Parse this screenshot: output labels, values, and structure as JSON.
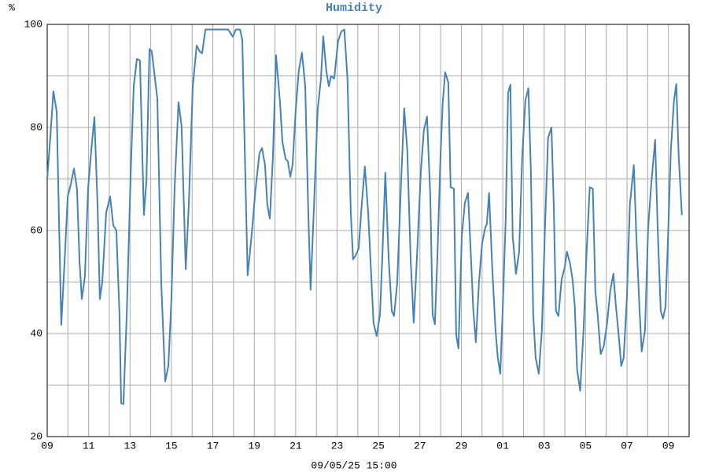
{
  "chart_data": {
    "type": "line",
    "title": "Humidity",
    "ylabel": "%",
    "xlabel": "09/05/25 15:00",
    "color": "#4682b4",
    "grid": true,
    "xlim": [
      0,
      31
    ],
    "xticks": [
      {
        "value": 0,
        "label": "09"
      },
      {
        "value": 2,
        "label": "11"
      },
      {
        "value": 4,
        "label": "13"
      },
      {
        "value": 6,
        "label": "15"
      },
      {
        "value": 8,
        "label": "17"
      },
      {
        "value": 10,
        "label": "19"
      },
      {
        "value": 12,
        "label": "21"
      },
      {
        "value": 14,
        "label": "23"
      },
      {
        "value": 16,
        "label": "25"
      },
      {
        "value": 18,
        "label": "27"
      },
      {
        "value": 20,
        "label": "29"
      },
      {
        "value": 22,
        "label": "01"
      },
      {
        "value": 24,
        "label": "03"
      },
      {
        "value": 26,
        "label": "05"
      },
      {
        "value": 28,
        "label": "07"
      },
      {
        "value": 30,
        "label": "09"
      }
    ],
    "ylim": [
      20,
      100
    ],
    "yticks": [
      20,
      40,
      60,
      80,
      100
    ],
    "x": [
      0,
      0.15,
      0.3,
      0.46,
      0.57,
      0.68,
      0.84,
      0.99,
      1.14,
      1.29,
      1.44,
      1.56,
      1.67,
      1.82,
      1.97,
      2.13,
      2.28,
      2.43,
      2.54,
      2.66,
      2.85,
      3.04,
      3.19,
      3.34,
      3.49,
      3.57,
      3.68,
      3.84,
      4.03,
      4.18,
      4.33,
      4.48,
      4.67,
      4.79,
      4.94,
      5.05,
      5.32,
      5.51,
      5.7,
      5.85,
      6,
      6.15,
      6.34,
      6.49,
      6.69,
      6.84,
      7.03,
      7.22,
      7.37,
      7.48,
      7.64,
      7.82,
      8.74,
      8.96,
      9.11,
      9.31,
      9.42,
      9.54,
      9.68,
      9.87,
      10.06,
      10.25,
      10.37,
      10.52,
      10.63,
      10.75,
      10.9,
      11.05,
      11.24,
      11.36,
      11.51,
      11.62,
      11.74,
      11.85,
      12,
      12.15,
      12.3,
      12.46,
      12.61,
      12.72,
      12.87,
      13.06,
      13.22,
      13.33,
      13.48,
      13.6,
      13.71,
      13.86,
      14.05,
      14.2,
      14.35,
      14.5,
      14.66,
      14.77,
      14.89,
      15.04,
      15.19,
      15.34,
      15.5,
      15.61,
      15.76,
      15.91,
      16.07,
      16.18,
      16.33,
      16.49,
      16.64,
      16.75,
      16.9,
      17.09,
      17.24,
      17.39,
      17.55,
      17.7,
      17.85,
      18.04,
      18.19,
      18.34,
      18.5,
      18.61,
      18.72,
      18.84,
      18.99,
      19.1,
      19.22,
      19.37,
      19.48,
      19.64,
      19.75,
      19.86,
      20.02,
      20.17,
      20.32,
      20.47,
      20.58,
      20.7,
      20.85,
      21,
      21.15,
      21.23,
      21.34,
      21.49,
      21.65,
      21.76,
      21.88,
      21.99,
      22.14,
      22.26,
      22.37,
      22.48,
      22.64,
      22.79,
      22.94,
      23.09,
      23.24,
      23.36,
      23.47,
      23.59,
      23.74,
      23.89,
      24.04,
      24.19,
      24.35,
      24.46,
      24.57,
      24.69,
      24.84,
      24.99,
      25.1,
      25.25,
      25.37,
      25.48,
      25.59,
      25.74,
      25.9,
      26.05,
      26.2,
      26.35,
      26.47,
      26.58,
      26.73,
      26.88,
      27.04,
      27.19,
      27.34,
      27.45,
      27.61,
      27.72,
      27.84,
      27.99,
      28.14,
      28.33,
      28.45,
      28.6,
      28.71,
      28.87,
      29.02,
      29.17,
      29.36,
      29.48,
      29.63,
      29.74,
      29.86,
      29.97,
      30.12,
      30.27,
      30.38,
      30.5,
      30.65
    ],
    "values": [
      70,
      78,
      87,
      83,
      62,
      41.7,
      54,
      66.6,
      69,
      72,
      68,
      54,
      46.7,
      51,
      68,
      75.7,
      82,
      65,
      46.7,
      50,
      63.5,
      66.6,
      61,
      60,
      43.7,
      26.5,
      26.3,
      43.7,
      71,
      88,
      93.3,
      93,
      63,
      69.6,
      95.2,
      94.8,
      85.6,
      49.8,
      30.7,
      33.7,
      46.7,
      68,
      84.9,
      80.3,
      52.5,
      65,
      87.9,
      95.9,
      94.7,
      94.4,
      99,
      99,
      99,
      97.6,
      99,
      99,
      97,
      75.7,
      51.3,
      59,
      68,
      75,
      76,
      72.7,
      65,
      62.3,
      74.2,
      94,
      85,
      77.2,
      73.9,
      73.4,
      70.4,
      72.7,
      83.4,
      91,
      94.5,
      88,
      63.5,
      48.5,
      63.5,
      83.4,
      89.5,
      97.7,
      91,
      88,
      90,
      89.5,
      96.8,
      98.6,
      99,
      89.5,
      63.5,
      54.4,
      55.1,
      56.5,
      65,
      72.4,
      63.5,
      54.4,
      42.1,
      39.5,
      43.7,
      54.4,
      71.2,
      54.4,
      44.4,
      43.4,
      49.8,
      69.6,
      83.7,
      75.7,
      54.4,
      42.1,
      54.4,
      71.2,
      79.5,
      82.1,
      66.6,
      43.7,
      41.8,
      54.4,
      74.2,
      84.9,
      90.7,
      88.7,
      68.4,
      68.1,
      39.8,
      37.1,
      58.9,
      65.3,
      67.3,
      54.4,
      44.4,
      38.3,
      49.8,
      57.4,
      60.5,
      61.2,
      67.3,
      52.8,
      40.6,
      35.3,
      32.2,
      43.7,
      62,
      86.7,
      88.3,
      58.9,
      51.6,
      55.9,
      74.2,
      85.2,
      87.6,
      71.2,
      43.7,
      35.3,
      32.2,
      40.6,
      60.5,
      78,
      80,
      65,
      44.4,
      43.4,
      50.5,
      52.8,
      55.9,
      53.6,
      50.5,
      45.2,
      33,
      28.9,
      40.6,
      55.9,
      68.4,
      68.1,
      48.2,
      43.7,
      36,
      37.6,
      42.1,
      48.2,
      51.6,
      45.9,
      39.1,
      33.7,
      35.3,
      46.7,
      65,
      72.7,
      58.9,
      45.2,
      36.5,
      40.6,
      60.5,
      68.9,
      77.6,
      60.5,
      44.4,
      42.9,
      45.2,
      57.4,
      75.7,
      85.3,
      88.4,
      74.2,
      63
    ]
  }
}
